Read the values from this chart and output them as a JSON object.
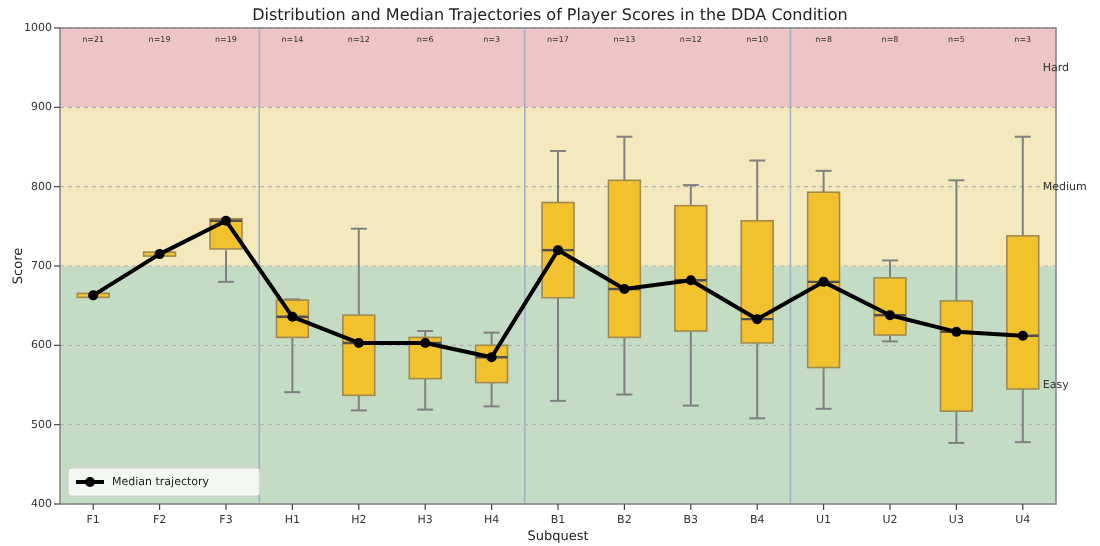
{
  "chart_data": {
    "type": "box",
    "title": "Distribution and Median Trajectories of Player Scores in the DDA Condition",
    "xlabel": "Subquest",
    "ylabel": "Score",
    "categories": [
      "F1",
      "F2",
      "F3",
      "H1",
      "H2",
      "H3",
      "H4",
      "B1",
      "B2",
      "B3",
      "B4",
      "U1",
      "U2",
      "U3",
      "U4"
    ],
    "ylim": [
      400,
      1000
    ],
    "yticks": [
      400,
      500,
      600,
      700,
      800,
      900,
      1000
    ],
    "grid": "y",
    "legend": "bottom left",
    "series": [
      {
        "color": "#f2c12e",
        "boxes": [
          {
            "low": 663,
            "q1": 663,
            "median": 663,
            "q3": 663,
            "high": 663
          },
          {
            "low": 715,
            "q1": 715,
            "median": 715,
            "q3": 715,
            "high": 715
          },
          {
            "low": 680,
            "q1": 720,
            "median": 757,
            "q3": 758,
            "high": 758
          },
          {
            "low": 541,
            "q1": 610,
            "median": 636,
            "q3": 657,
            "high": 658
          },
          {
            "low": 518,
            "q1": 537,
            "median": 603,
            "q3": 638,
            "high": 747
          },
          {
            "low": 519,
            "q1": 558,
            "median": 603,
            "q3": 610,
            "high": 618
          },
          {
            "low": 523,
            "q1": 553,
            "median": 585,
            "q3": 600,
            "high": 616
          },
          {
            "low": 530,
            "q1": 660,
            "median": 720,
            "q3": 780,
            "high": 845
          },
          {
            "low": 538,
            "q1": 610,
            "median": 671,
            "q3": 808,
            "high": 863
          },
          {
            "low": 524,
            "q1": 618,
            "median": 682,
            "q3": 776,
            "high": 802
          },
          {
            "low": 508,
            "q1": 603,
            "median": 633,
            "q3": 757,
            "high": 833
          },
          {
            "low": 520,
            "q1": 572,
            "median": 680,
            "q3": 793,
            "high": 820
          },
          {
            "low": 605,
            "q1": 613,
            "median": 638,
            "q3": 685,
            "high": 707
          },
          {
            "low": 477,
            "q1": 517,
            "median": 617,
            "q3": 656,
            "high": 808
          },
          {
            "low": 478,
            "q1": 545,
            "median": 612,
            "q3": 738,
            "high": 863
          }
        ]
      },
      {
        "type": "line",
        "name": "Median trajectory",
        "color": "#000000",
        "marker": "circle",
        "line_style": "solid",
        "values": [
          663,
          715,
          757,
          636,
          603,
          603,
          585,
          720,
          671,
          682,
          633,
          680,
          638,
          617,
          612
        ]
      }
    ],
    "bands": [
      {
        "axis": "y",
        "from": 400,
        "to": 700,
        "label": "Easy",
        "color": "#c4dcc4"
      },
      {
        "axis": "y",
        "from": 700,
        "to": 900,
        "label": "Medium",
        "color": "#f3e9bc"
      },
      {
        "axis": "y",
        "from": 900,
        "to": 1000,
        "label": "Hard",
        "color": "#eec4c4"
      }
    ],
    "annotations": [
      "n=21",
      "n=19",
      "n=19",
      "n=14",
      "n=12",
      "n=6",
      "n=3",
      "n=17",
      "n=13",
      "n=12",
      "n=10",
      "n=8",
      "n=8",
      "n=5",
      "n=3"
    ]
  }
}
